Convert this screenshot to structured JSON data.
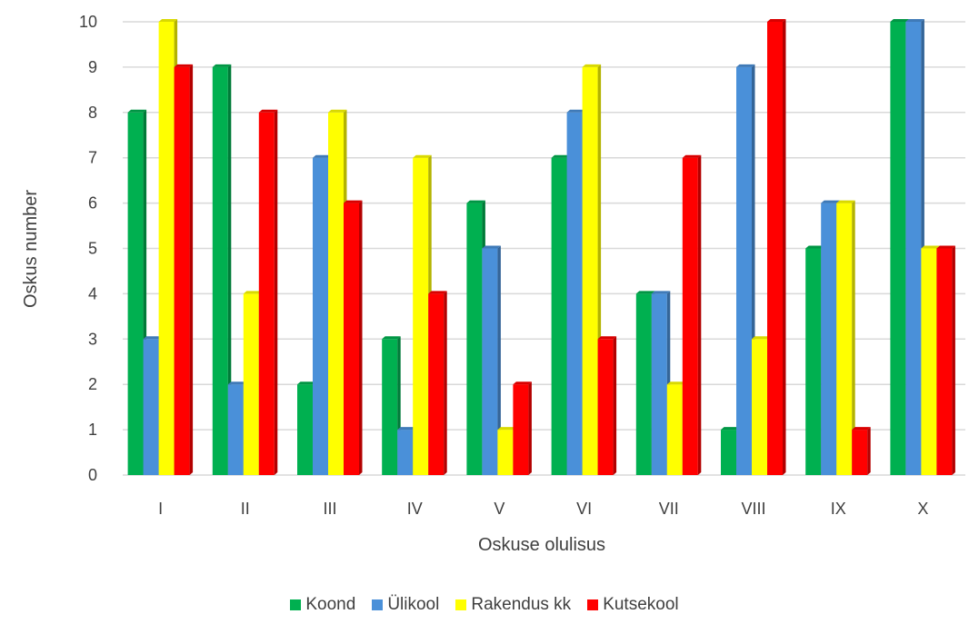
{
  "chart_data": {
    "type": "bar",
    "categories": [
      "I",
      "II",
      "III",
      "IV",
      "V",
      "VI",
      "VII",
      "VIII",
      "IX",
      "X"
    ],
    "series": [
      {
        "name": "Koond",
        "color": "#00b050",
        "values": [
          8,
          9,
          2,
          3,
          6,
          7,
          4,
          1,
          5,
          10
        ]
      },
      {
        "name": "Ülikool",
        "color": "#4a90d9",
        "values": [
          3,
          2,
          7,
          1,
          5,
          8,
          4,
          9,
          6,
          10
        ]
      },
      {
        "name": "Rakendus kk",
        "color": "#ffff00",
        "values": [
          10,
          4,
          8,
          7,
          1,
          9,
          2,
          3,
          6,
          5
        ]
      },
      {
        "name": "Kutsekool",
        "color": "#ff0000",
        "values": [
          9,
          8,
          6,
          4,
          2,
          3,
          7,
          10,
          1,
          5
        ]
      }
    ],
    "xlabel": "Oskuse olulisus",
    "ylabel": "Oskus number",
    "ylim": [
      0,
      10
    ],
    "yticks": [
      "0",
      "1",
      "2",
      "3",
      "4",
      "5",
      "6",
      "7",
      "8",
      "9",
      "10"
    ],
    "grid": true,
    "legend_position": "bottom"
  }
}
